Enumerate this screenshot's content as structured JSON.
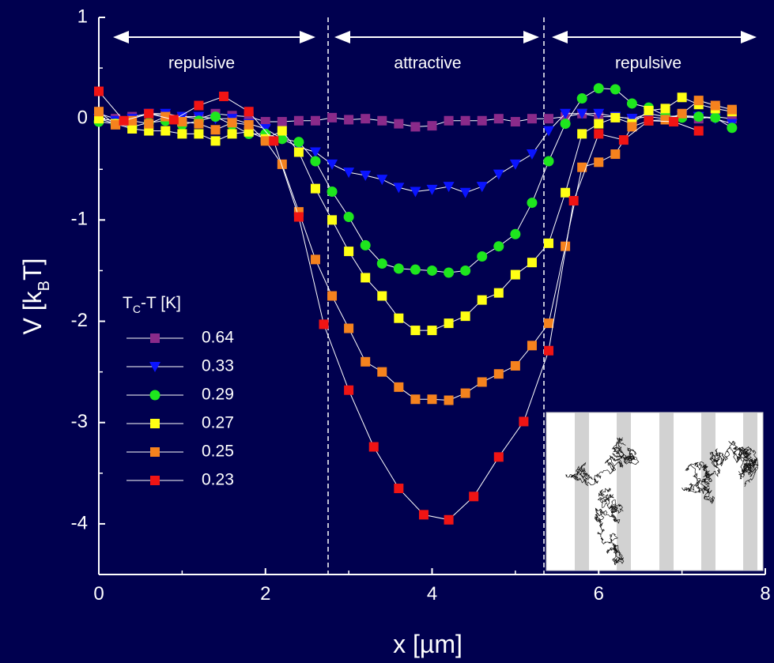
{
  "chart_data": {
    "type": "line",
    "xlabel": "x [µm]",
    "ylabel_parts": [
      "V [k",
      "B",
      "T]"
    ],
    "legend_title_parts": [
      "T",
      "C",
      "-T [K]"
    ],
    "annotations": [
      "repulsive",
      "attractive",
      "repulsive"
    ],
    "xlim": [
      0,
      8
    ],
    "xticks": [
      0,
      2,
      4,
      6,
      8
    ],
    "ylim": [
      -4.5,
      1
    ],
    "yticks": [
      1,
      0,
      -1,
      -2,
      -3,
      -4
    ],
    "legend": "left",
    "series": [
      {
        "name": "0.64",
        "color": "#8a2a8a",
        "marker": "square",
        "x": [
          0,
          0.2,
          0.4,
          0.6,
          0.8,
          1,
          1.2,
          1.4,
          1.6,
          1.8,
          2,
          2.2,
          2.4,
          2.6,
          2.8,
          3,
          3.2,
          3.4,
          3.6,
          3.8,
          4,
          4.2,
          4.4,
          4.6,
          4.8,
          5,
          5.2,
          5.4,
          5.6,
          5.8,
          6,
          6.2,
          6.4,
          6.6,
          6.8,
          7,
          7.2,
          7.4,
          7.6
        ],
        "values": [
          0.05,
          0.0,
          0.02,
          0.05,
          0.03,
          0.02,
          0.0,
          0.05,
          0.03,
          0.02,
          -0.03,
          -0.03,
          -0.02,
          -0.02,
          0.01,
          -0.01,
          0.0,
          -0.02,
          -0.05,
          -0.08,
          -0.07,
          -0.02,
          -0.02,
          -0.02,
          0.0,
          -0.03,
          0.0,
          0.0,
          0.02,
          0.05,
          0.02,
          0.02,
          0.0,
          0.05,
          0.02,
          0.03,
          0.0,
          0.02,
          0.0
        ]
      },
      {
        "name": "0.33",
        "color": "#0a14ff",
        "marker": "triangle-down",
        "x": [
          0,
          0.2,
          0.4,
          0.6,
          0.8,
          1,
          1.2,
          1.4,
          1.6,
          1.8,
          2,
          2.2,
          2.4,
          2.6,
          2.8,
          3,
          3.2,
          3.4,
          3.6,
          3.8,
          4,
          4.2,
          4.4,
          4.6,
          4.8,
          5,
          5.2,
          5.4,
          5.6,
          5.8,
          6,
          6.2,
          6.4,
          6.6,
          6.8,
          7,
          7.2,
          7.4,
          7.6
        ],
        "values": [
          0,
          -0.02,
          0,
          0.05,
          0.05,
          0.02,
          0.02,
          0,
          0,
          -0.05,
          -0.1,
          -0.2,
          -0.28,
          -0.33,
          -0.45,
          -0.53,
          -0.56,
          -0.6,
          -0.68,
          -0.72,
          -0.7,
          -0.67,
          -0.73,
          -0.67,
          -0.55,
          -0.45,
          -0.35,
          -0.12,
          0.05,
          0.05,
          0.05,
          0.02,
          0,
          0.02,
          0,
          0.03,
          0.02,
          0,
          -0.05
        ]
      },
      {
        "name": "0.29",
        "color": "#1ee61e",
        "marker": "circle",
        "x": [
          0,
          0.2,
          0.4,
          0.6,
          0.8,
          1,
          1.2,
          1.4,
          1.6,
          1.8,
          2,
          2.2,
          2.4,
          2.6,
          2.8,
          3,
          3.2,
          3.4,
          3.6,
          3.8,
          4,
          4.2,
          4.4,
          4.6,
          4.8,
          5,
          5.2,
          5.4,
          5.6,
          5.8,
          6,
          6.2,
          6.4,
          6.6,
          6.8,
          7,
          7.2,
          7.4,
          7.6
        ],
        "values": [
          -0.03,
          -0.05,
          -0.08,
          -0.04,
          -0.02,
          -0.06,
          -0.02,
          0.02,
          -0.06,
          -0.15,
          -0.15,
          -0.2,
          -0.23,
          -0.42,
          -0.72,
          -0.97,
          -1.25,
          -1.43,
          -1.48,
          -1.49,
          -1.5,
          -1.52,
          -1.5,
          -1.36,
          -1.26,
          -1.14,
          -0.83,
          -0.42,
          -0.05,
          0.2,
          0.3,
          0.29,
          0.15,
          0.11,
          0.03,
          0.01,
          0.02,
          0.01,
          -0.09
        ]
      },
      {
        "name": "0.27",
        "color": "#ffff14",
        "marker": "square",
        "x": [
          0,
          0.2,
          0.4,
          0.6,
          0.8,
          1,
          1.2,
          1.4,
          1.6,
          1.8,
          2,
          2.2,
          2.4,
          2.6,
          2.8,
          3,
          3.2,
          3.4,
          3.6,
          3.8,
          4,
          4.2,
          4.4,
          4.6,
          4.8,
          5,
          5.2,
          5.4,
          5.6,
          5.8,
          6,
          6.2,
          6.4,
          6.6,
          6.8,
          7,
          7.2,
          7.4,
          7.6
        ],
        "values": [
          0.0,
          -0.05,
          -0.1,
          -0.12,
          -0.12,
          -0.15,
          -0.15,
          -0.22,
          -0.15,
          -0.13,
          -0.2,
          -0.12,
          -0.33,
          -0.69,
          -1.0,
          -1.31,
          -1.57,
          -1.75,
          -1.97,
          -2.09,
          -2.09,
          -2.02,
          -1.95,
          -1.79,
          -1.72,
          -1.54,
          -1.42,
          -1.23,
          -0.73,
          -0.15,
          -0.05,
          0.01,
          -0.05,
          0.08,
          0.1,
          0.21,
          0.14,
          0.1,
          0.07
        ]
      },
      {
        "name": "0.25",
        "color": "#f5821e",
        "marker": "square",
        "x": [
          0,
          0.2,
          0.4,
          0.6,
          0.8,
          1,
          1.2,
          1.4,
          1.6,
          1.8,
          2,
          2.2,
          2.4,
          2.6,
          2.8,
          3,
          3.2,
          3.4,
          3.6,
          3.8,
          4,
          4.2,
          4.4,
          4.6,
          4.8,
          5,
          5.2,
          5.4,
          5.6,
          5.8,
          6,
          6.2,
          6.4,
          6.6,
          6.8,
          7,
          7.2,
          7.4,
          7.6
        ],
        "values": [
          0.07,
          -0.06,
          -0.02,
          -0.05,
          0.02,
          -0.03,
          -0.05,
          -0.11,
          -0.04,
          -0.06,
          -0.22,
          -0.45,
          -0.92,
          -1.39,
          -1.75,
          -2.07,
          -2.4,
          -2.5,
          -2.65,
          -2.77,
          -2.77,
          -2.78,
          -2.71,
          -2.6,
          -2.52,
          -2.44,
          -2.24,
          -2.02,
          -1.26,
          -0.48,
          -0.43,
          -0.35,
          -0.08,
          -0.02,
          -0.01,
          0.05,
          0.18,
          0.13,
          0.09
        ]
      },
      {
        "name": "0.23",
        "color": "#f01414",
        "marker": "square",
        "x": [
          0,
          0.3,
          0.6,
          0.9,
          1.2,
          1.5,
          1.8,
          2.1,
          2.4,
          2.7,
          3,
          3.3,
          3.6,
          3.9,
          4.2,
          4.5,
          4.8,
          5.1,
          5.4,
          5.7,
          6,
          6.3,
          6.6,
          6.9,
          7.2
        ],
        "values": [
          0.27,
          -0.02,
          0.05,
          -0.01,
          0.13,
          0.22,
          0.07,
          -0.22,
          -0.97,
          -2.03,
          -2.68,
          -3.24,
          -3.65,
          -3.91,
          -3.96,
          -3.73,
          -3.34,
          -2.99,
          -2.29,
          -0.81,
          -0.15,
          -0.21,
          -0.02,
          -0.03,
          -0.12
        ]
      }
    ]
  }
}
